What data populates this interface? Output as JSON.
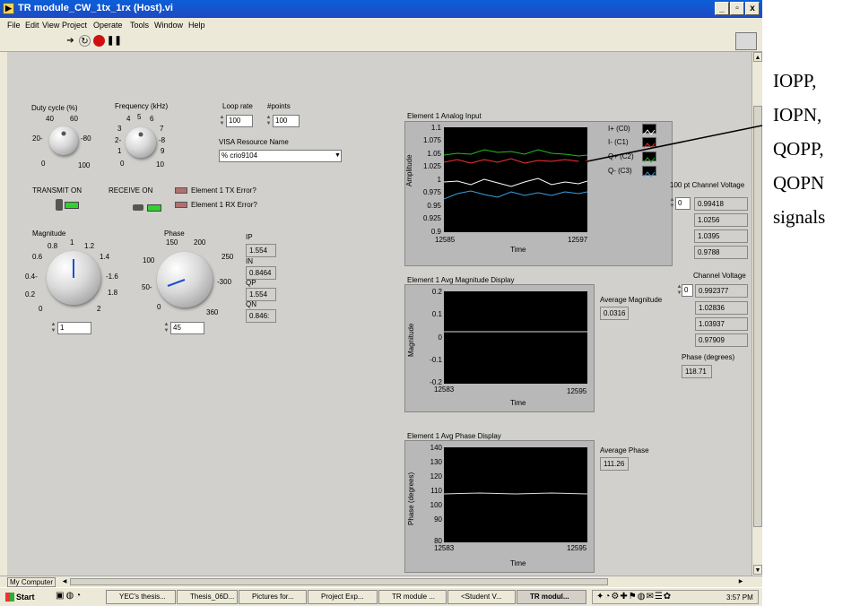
{
  "window": {
    "title": "TR module_CW_1tx_1rx (Host).vi",
    "btn_min": "_",
    "btn_max": "▫",
    "btn_close": "x"
  },
  "menu": [
    "File",
    "Edit",
    "View",
    "Project",
    "Operate",
    "Tools",
    "Window",
    "Help"
  ],
  "controls": {
    "duty_label": "Duty cycle (%)",
    "duty_ticks": [
      "40",
      "60",
      "20-",
      "-80",
      "0",
      "100"
    ],
    "freq_label": "Frequency (kHz)",
    "freq_ticks": [
      "4",
      "5",
      "6",
      "3",
      "7",
      "2-",
      "-8",
      "1",
      "9",
      "0",
      "10"
    ],
    "loop_rate_label": "Loop rate",
    "loop_rate_value": "100",
    "points_label": "#points",
    "points_value": "100",
    "visa_label": "VISA Resource Name",
    "visa_value": "crio9104",
    "visa_prefix": "%",
    "transmit_label": "TRANSMIT ON",
    "receive_label": "RECEIVE ON",
    "tx_error_label": "Element 1 TX Error?",
    "rx_error_label": "Element 1 RX Error?",
    "magnitude_label": "Magnitude",
    "mag_ticks": [
      "1",
      "0.8",
      "1.2",
      "0.6",
      "1.4",
      "0.4-",
      "-1.6",
      "0.2",
      "1.8",
      "0",
      "2"
    ],
    "magnitude_value": "1",
    "phase_label": "Phase",
    "phase_ticks": [
      "150",
      "200",
      "100",
      "250",
      "50-",
      "-300",
      "0",
      "360"
    ],
    "phase_value": "45",
    "ip_label": "IP",
    "ip_value": "1.554",
    "in_label": "IN",
    "in_value": "0.8464",
    "qp_label": "QP",
    "qp_value": "1.554",
    "qn_label": "QN",
    "qn_value": "0.846:"
  },
  "graph1": {
    "title": "Element 1 Analog Input",
    "y_ticks": [
      "1.1",
      "1.075",
      "1.05",
      "1.025",
      "1",
      "0.975",
      "0.95",
      "0.925",
      "0.9"
    ],
    "x_ticks": [
      "12585",
      "12597"
    ],
    "xlabel": "Time",
    "ylabel": "Amplitude",
    "legend": [
      "I+ (C0)",
      "I- (C1)",
      "Q+ (C2)",
      "Q- (C3)"
    ],
    "legend_colors": [
      "#ffffff",
      "#ff3030",
      "#20c020",
      "#3aa0e0"
    ]
  },
  "channel_voltages_100pt": {
    "label": "100 pt Channel Voltage",
    "index": "0",
    "values": [
      "0.99418",
      "1.0256",
      "1.0395",
      "0.9788"
    ]
  },
  "graph2": {
    "title": "Element 1 Avg Magnitude Display",
    "y_ticks": [
      "0.2",
      "0.1",
      "0",
      "-0.1",
      "-0.2"
    ],
    "x_ticks": [
      "12583",
      "12595"
    ],
    "xlabel": "Time",
    "ylabel": "Magnitude"
  },
  "avg_magnitude": {
    "label": "Average Magnitude",
    "value": "0.0316"
  },
  "channel_voltages": {
    "label": "Channel Voltage",
    "index": "0",
    "values": [
      "0.992377",
      "1.02836",
      "1.03937",
      "0.97909"
    ]
  },
  "phase_deg": {
    "label": "Phase (degrees)",
    "value": "118.71"
  },
  "graph3": {
    "title": "Element 1 Avg Phase Display",
    "y_ticks": [
      "140",
      "130",
      "120",
      "110",
      "100",
      "90",
      "80"
    ],
    "x_ticks": [
      "12583",
      "12595"
    ],
    "xlabel": "Time",
    "ylabel": "Phase (degrees)"
  },
  "avg_phase": {
    "label": "Average Phase",
    "value": "111.26"
  },
  "status": {
    "context": "My Computer"
  },
  "taskbar": {
    "start": "Start",
    "tasks": [
      "YEC's thesis...",
      "Thesis_06D...",
      "Pictures for...",
      "Project Exp...",
      "TR module ...",
      "<Student V...",
      "TR modul..."
    ],
    "clock": "3:57 PM"
  },
  "annotation": [
    "IOPP,",
    "IOPN,",
    "QOPP,",
    "QOPN",
    "signals"
  ]
}
